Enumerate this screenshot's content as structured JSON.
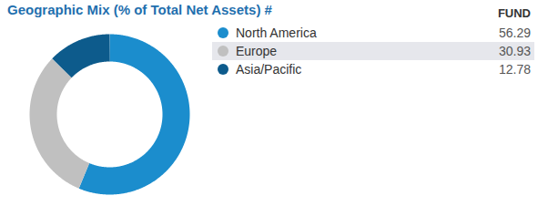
{
  "chart_data": {
    "type": "donut",
    "title": "Geographic Mix (% of Total Net Assets) #",
    "annotations": [
      "FUND"
    ],
    "categories": [
      "North America",
      "Europe",
      "Asia/Pacific"
    ],
    "values": [
      56.29,
      30.93,
      12.78
    ],
    "colors": [
      "#1b8dcd",
      "#c0c0c0",
      "#0d5b8c"
    ],
    "legend": "right"
  }
}
